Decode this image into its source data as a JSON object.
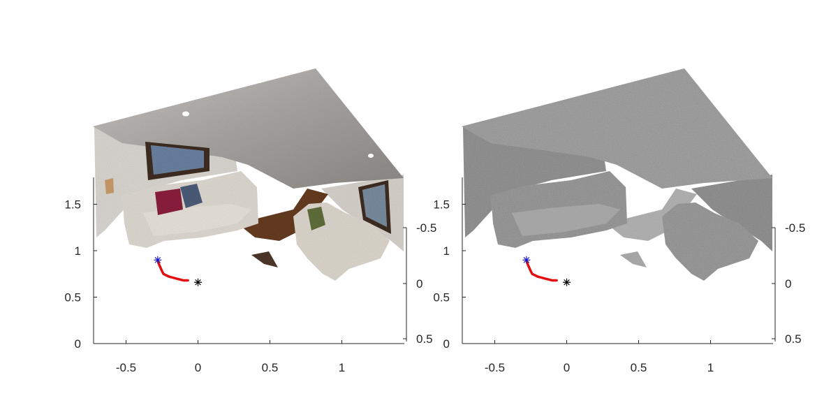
{
  "chart_data": [
    {
      "type": "scatter",
      "title": "",
      "rendering": "3D point cloud of a living room, RGB-coloured",
      "point_colors": {
        "ceiling": "#9b9895",
        "walls": "#d8d4ce",
        "sofa": "#ddd8d0",
        "pillow_red": "#8a1f3c",
        "pillow_blue": "#4b5c78",
        "pillow_green": "#5e6e3a",
        "floor": "#6b3f22",
        "painting_frame": "#3a2a1f",
        "painting": "#6f87a8"
      },
      "x_axis": {
        "ticks": [
          -0.5,
          0,
          0.5,
          1
        ],
        "tick_labels": [
          "-0.5",
          "0",
          "0.5",
          "1"
        ],
        "range": [
          -0.72,
          1.43
        ]
      },
      "z_axis": {
        "ticks": [
          0,
          0.5,
          1,
          1.5
        ],
        "tick_labels": [
          "0",
          "0.5",
          "1",
          "1.5"
        ],
        "range": [
          0,
          1.82
        ]
      },
      "y_axis": {
        "ticks": [
          -0.5,
          0,
          0.5
        ],
        "tick_labels": [
          "-0.5",
          "0",
          "0.5"
        ]
      },
      "camera_trajectory": {
        "color": "#e01010",
        "x": [
          -0.28,
          -0.27,
          -0.25,
          -0.24,
          -0.2,
          -0.15,
          -0.1,
          -0.07
        ],
        "z": [
          0.9,
          0.85,
          0.78,
          0.75,
          0.72,
          0.7,
          0.68,
          0.68
        ],
        "start_marker": {
          "x": -0.28,
          "z": 0.9,
          "symbol": "asterisk",
          "color": "#1a1acc"
        },
        "end_marker": {
          "x": 0,
          "z": 0.66,
          "symbol": "asterisk",
          "color": "#000000"
        }
      }
    },
    {
      "type": "scatter",
      "title": "",
      "rendering": "3D point cloud of the same room, uniform grey",
      "point_colors": {
        "all": "#9a9a9a"
      },
      "x_axis": {
        "ticks": [
          -0.5,
          0,
          0.5,
          1
        ],
        "tick_labels": [
          "-0.5",
          "0",
          "0.5",
          "1"
        ],
        "range": [
          -0.72,
          1.43
        ]
      },
      "z_axis": {
        "ticks": [
          0,
          0.5,
          1,
          1.5
        ],
        "tick_labels": [
          "0",
          "0.5",
          "1",
          "1.5"
        ],
        "range": [
          0,
          1.82
        ]
      },
      "y_axis": {
        "ticks": [
          -0.5,
          0,
          0.5
        ],
        "tick_labels": [
          "-0.5",
          "0",
          "0.5"
        ]
      },
      "camera_trajectory": {
        "color": "#e01010",
        "x": [
          -0.28,
          -0.27,
          -0.25,
          -0.24,
          -0.2,
          -0.15,
          -0.1,
          -0.07
        ],
        "z": [
          0.9,
          0.85,
          0.78,
          0.75,
          0.72,
          0.7,
          0.68,
          0.68
        ],
        "start_marker": {
          "x": -0.28,
          "z": 0.9,
          "symbol": "asterisk",
          "color": "#1a1acc"
        },
        "end_marker": {
          "x": 0,
          "z": 0.66,
          "symbol": "asterisk",
          "color": "#000000"
        }
      }
    }
  ]
}
